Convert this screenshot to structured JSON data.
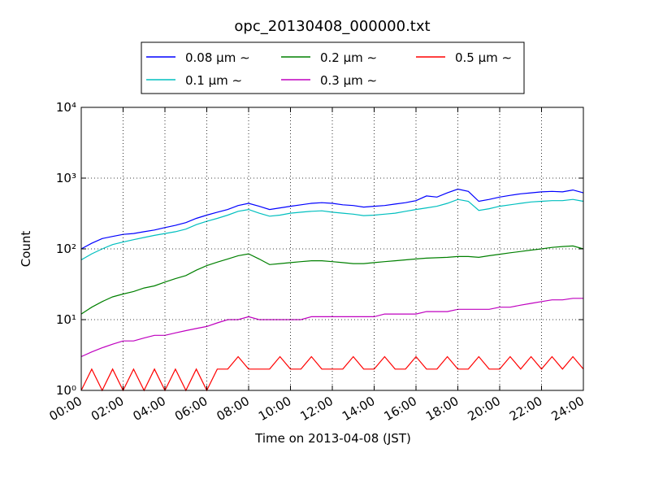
{
  "chart_data": {
    "type": "line",
    "title": "opc_20130408_000000.txt",
    "x_label": "Time on 2013-04-08 (JST)",
    "y_label": "Count",
    "yscale": "log",
    "grid": true,
    "legend": "upper center",
    "legend_columns": 3,
    "xlim": [
      0,
      24
    ],
    "xticks": [
      {
        "value": 0,
        "label": "00:00"
      },
      {
        "value": 2,
        "label": "02:00"
      },
      {
        "value": 4,
        "label": "04:00"
      },
      {
        "value": 6,
        "label": "06:00"
      },
      {
        "value": 8,
        "label": "08:00"
      },
      {
        "value": 10,
        "label": "10:00"
      },
      {
        "value": 12,
        "label": "12:00"
      },
      {
        "value": 14,
        "label": "14:00"
      },
      {
        "value": 16,
        "label": "16:00"
      },
      {
        "value": 18,
        "label": "18:00"
      },
      {
        "value": 20,
        "label": "20:00"
      },
      {
        "value": 22,
        "label": "22:00"
      },
      {
        "value": 24,
        "label": "24:00"
      }
    ],
    "ylim": [
      1,
      10000
    ],
    "yticks": [
      {
        "value": 1,
        "label": "10⁰"
      },
      {
        "value": 10,
        "label": "10¹"
      },
      {
        "value": 100,
        "label": "10²"
      },
      {
        "value": 1000,
        "label": "10³"
      },
      {
        "value": 10000,
        "label": "10⁴"
      }
    ],
    "x": [
      0,
      0.5,
      1,
      1.5,
      2,
      2.5,
      3,
      3.5,
      4,
      4.5,
      5,
      5.5,
      6,
      6.5,
      7,
      7.5,
      8,
      8.5,
      9,
      9.5,
      10,
      10.5,
      11,
      11.5,
      12,
      12.5,
      13,
      13.5,
      14,
      14.5,
      15,
      15.5,
      16,
      16.5,
      17,
      17.5,
      18,
      18.5,
      19,
      19.5,
      20,
      20.5,
      21,
      21.5,
      22,
      22.5,
      23,
      23.5,
      24
    ],
    "series": [
      {
        "name": "0.08 μm ∼",
        "color": "#0000ff",
        "values": [
          100,
          120,
          140,
          150,
          160,
          165,
          175,
          185,
          200,
          215,
          235,
          270,
          300,
          330,
          360,
          410,
          440,
          400,
          360,
          380,
          400,
          420,
          440,
          450,
          440,
          420,
          410,
          390,
          400,
          410,
          430,
          450,
          480,
          560,
          540,
          620,
          700,
          650,
          470,
          500,
          540,
          570,
          600,
          620,
          640,
          650,
          640,
          680,
          620
        ]
      },
      {
        "name": "0.1 μm ∼",
        "color": "#00bfbf",
        "values": [
          70,
          85,
          100,
          115,
          125,
          135,
          145,
          155,
          165,
          175,
          190,
          220,
          245,
          270,
          300,
          340,
          360,
          320,
          290,
          300,
          320,
          330,
          340,
          345,
          330,
          320,
          310,
          295,
          300,
          310,
          320,
          340,
          360,
          380,
          400,
          440,
          500,
          470,
          350,
          370,
          400,
          420,
          440,
          460,
          470,
          480,
          480,
          500,
          470
        ]
      },
      {
        "name": "0.2 μm ∼",
        "color": "#008000",
        "values": [
          12,
          15,
          18,
          21,
          23,
          25,
          28,
          30,
          34,
          38,
          42,
          50,
          58,
          65,
          72,
          80,
          85,
          72,
          60,
          62,
          64,
          66,
          68,
          68,
          66,
          64,
          62,
          62,
          64,
          66,
          68,
          70,
          72,
          74,
          75,
          76,
          78,
          78,
          76,
          80,
          84,
          88,
          92,
          96,
          100,
          105,
          108,
          110,
          100
        ]
      },
      {
        "name": "0.3 μm ∼",
        "color": "#bf00bf",
        "values": [
          3,
          3.5,
          4,
          4.5,
          5,
          5,
          5.5,
          6,
          6,
          6.5,
          7,
          7.5,
          8,
          9,
          10,
          10,
          11,
          10,
          10,
          10,
          10,
          10,
          11,
          11,
          11,
          11,
          11,
          11,
          11,
          12,
          12,
          12,
          12,
          13,
          13,
          13,
          14,
          14,
          14,
          14,
          15,
          15,
          16,
          17,
          18,
          19,
          19,
          20,
          20
        ]
      },
      {
        "name": "0.5 μm ∼",
        "color": "#ff0000",
        "values": [
          1,
          2,
          1,
          2,
          1,
          2,
          1,
          2,
          1,
          2,
          1,
          2,
          1,
          2,
          2,
          3,
          2,
          2,
          2,
          3,
          2,
          2,
          3,
          2,
          2,
          2,
          3,
          2,
          2,
          3,
          2,
          2,
          3,
          2,
          2,
          3,
          2,
          2,
          3,
          2,
          2,
          3,
          2,
          3,
          2,
          3,
          2,
          3,
          2
        ]
      }
    ]
  }
}
